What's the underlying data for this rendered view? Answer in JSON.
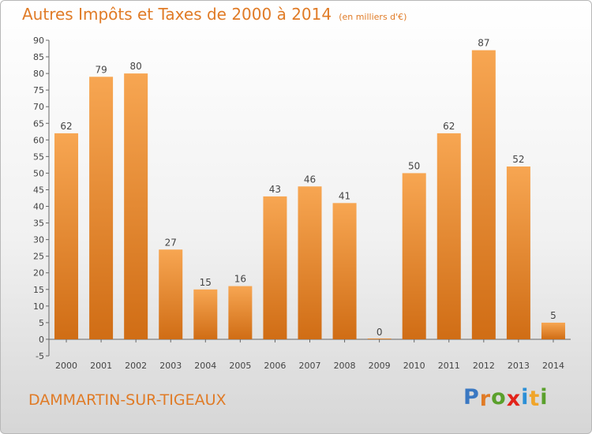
{
  "header": {
    "title": "Autres Impôts et Taxes de 2000 à 2014",
    "subtitle": "(en milliers d'€)"
  },
  "footer": {
    "town": "DAMMARTIN-SUR-TIGEAUX",
    "logo_letters": [
      {
        "ch": "P",
        "color": "#3a78c2"
      },
      {
        "ch": "r",
        "color": "#e07b26"
      },
      {
        "ch": "o",
        "color": "#5aa02c"
      },
      {
        "ch": "x",
        "color": "#e2231a"
      },
      {
        "ch": "i",
        "color": "#2b8fd6"
      },
      {
        "ch": "t",
        "color": "#f0a52a"
      },
      {
        "ch": "i",
        "color": "#5aa02c"
      }
    ]
  },
  "chart_data": {
    "type": "bar",
    "categories": [
      "2000",
      "2001",
      "2002",
      "2003",
      "2004",
      "2005",
      "2006",
      "2007",
      "2008",
      "2009",
      "2010",
      "2011",
      "2012",
      "2013",
      "2014"
    ],
    "values": [
      62,
      79,
      80,
      27,
      15,
      16,
      43,
      46,
      41,
      0,
      50,
      62,
      87,
      52,
      5
    ],
    "ylim": [
      -5,
      90
    ],
    "ytick_step": 5,
    "grid": false,
    "bar_color_light": "#f7a652",
    "bar_color_dark": "#d06d15",
    "axis_color": "#666666"
  }
}
